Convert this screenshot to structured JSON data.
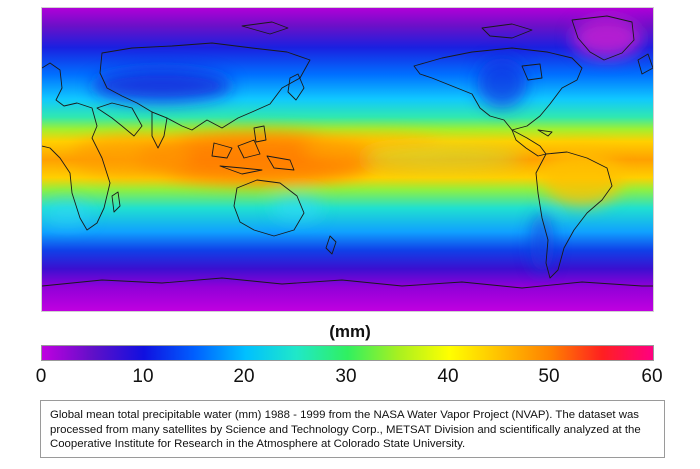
{
  "map": {
    "subject": "Global mean total precipitable water",
    "colors": {
      "ocean_background": "#18a0f0",
      "polar": "#b000d8",
      "tropics": "#ff8a00",
      "coastline": "#1a1a1a"
    }
  },
  "legend": {
    "unit": "(mm)",
    "ticks": [
      "0",
      "10",
      "20",
      "30",
      "40",
      "50",
      "60"
    ],
    "range": [
      0,
      60
    ],
    "gradient_stops": [
      {
        "value": 0,
        "color": "#c000e0"
      },
      {
        "value": 5,
        "color": "#6010c8"
      },
      {
        "value": 10,
        "color": "#1010e0"
      },
      {
        "value": 15,
        "color": "#0060ff"
      },
      {
        "value": 20,
        "color": "#00c0ff"
      },
      {
        "value": 25,
        "color": "#20e8c8"
      },
      {
        "value": 30,
        "color": "#30f060"
      },
      {
        "value": 35,
        "color": "#a8f020"
      },
      {
        "value": 40,
        "color": "#ffff00"
      },
      {
        "value": 45,
        "color": "#ffc000"
      },
      {
        "value": 50,
        "color": "#ff8000"
      },
      {
        "value": 55,
        "color": "#ff2020"
      },
      {
        "value": 60,
        "color": "#ff0080"
      }
    ]
  },
  "caption": {
    "text": "Global mean total precipitable water (mm) 1988 - 1999 from the NASA Water Vapor Project (NVAP). The dataset was processed from many satellites by Science and Technology Corp., METSAT Division and scientifically analyzed at the Cooperative Institute for Research in the Atmosphere at Colorado State University."
  }
}
